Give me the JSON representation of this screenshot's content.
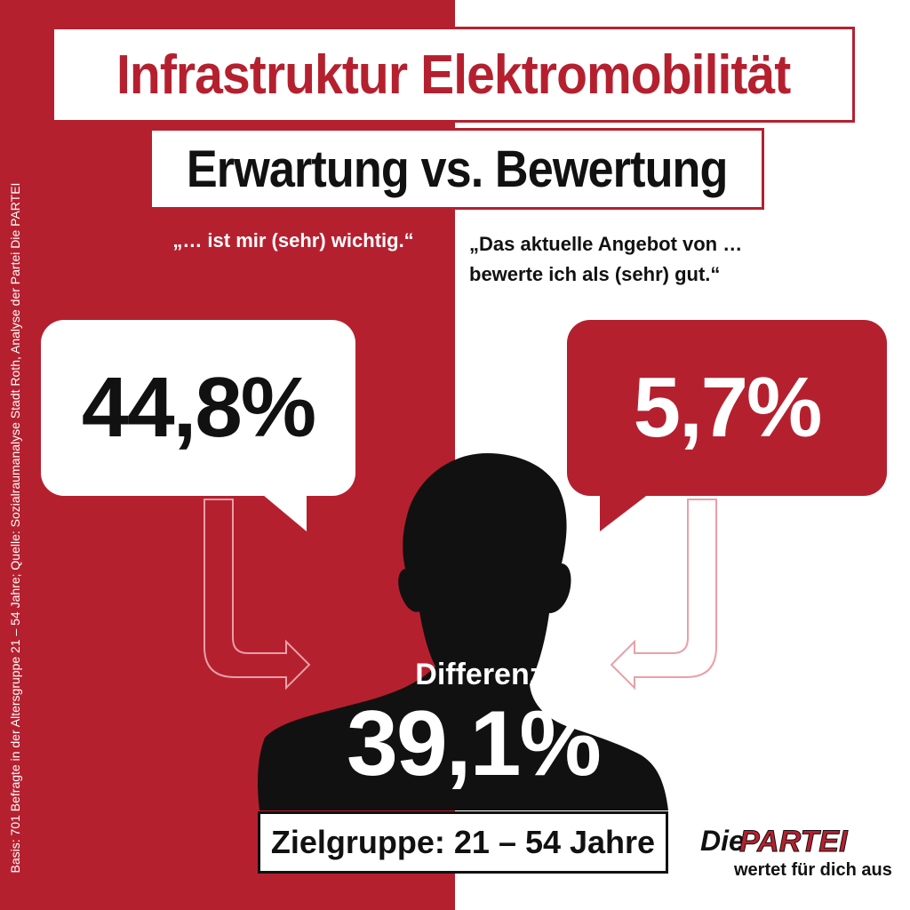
{
  "title": "Infrastruktur Elektromobilität",
  "subtitle": "Erwartung vs. Bewertung",
  "left": {
    "quote": "„… ist mir (sehr) wichtig.“",
    "percentage": "44,8%"
  },
  "right": {
    "quote_line1": "„Das aktuelle Angebot von …",
    "quote_line2": "bewerte ich als (sehr) gut.“",
    "percentage": "5,7%"
  },
  "difference": {
    "label": "Differenz",
    "value": "39,1%"
  },
  "target_group": "Zielgruppe: 21 – 54 Jahre",
  "source": "Basis: 701 Befragte in der Altersgruppe 21 – 54 Jahre; Quelle: Sozialraumanalyse Stadt Roth, Analyse der Partei Die PARTEI",
  "logo": {
    "die": "Die",
    "partei": "PARTEI",
    "slogan": "wertet für dich aus"
  },
  "colors": {
    "brand_red": "#b5202f",
    "black": "#111111",
    "white": "#ffffff"
  },
  "icons": [
    "person-silhouette-icon",
    "arrow-right-icon",
    "arrow-left-icon",
    "speech-bubble-icon"
  ]
}
